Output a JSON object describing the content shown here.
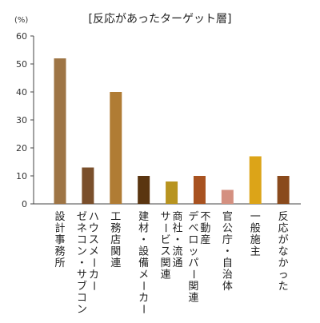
{
  "chart_data": {
    "type": "bar",
    "title": "[反応があったターゲット層]",
    "unit_label": "(%)",
    "ylim": [
      0,
      60
    ],
    "yticks": [
      0,
      10,
      20,
      30,
      40,
      50,
      60
    ],
    "grid": false,
    "legend": "none",
    "categories": [
      "設計事務所",
      "ハウスメーカー\nゼネコン・サブコン",
      "工務店関連",
      "建材・設備メーカー",
      "商社・流通\nサービス関連",
      "不動産\nデベロッパー関連",
      "官公庁・自治体",
      "一般施主",
      "反応がなかった"
    ],
    "values": [
      52,
      13,
      40,
      10,
      8,
      10,
      5,
      17,
      10
    ],
    "colors": [
      "#9e7545",
      "#7a4f2b",
      "#b07c34",
      "#5a3510",
      "#b89420",
      "#a85220",
      "#d49080",
      "#dca418",
      "#8a4a1c"
    ]
  }
}
